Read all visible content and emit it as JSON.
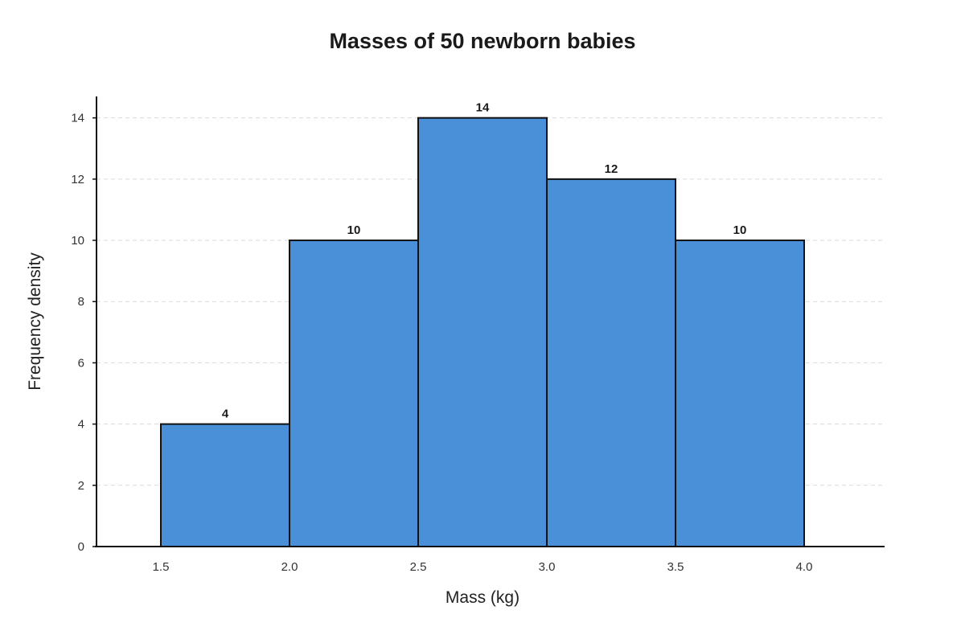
{
  "chart_data": {
    "type": "bar",
    "title": "Masses of 50 newborn babies",
    "xlabel": "Mass (kg)",
    "ylabel": "Frequency density",
    "bins": [
      {
        "start": 1.5,
        "end": 2.0,
        "value": 4
      },
      {
        "start": 2.0,
        "end": 2.5,
        "value": 10
      },
      {
        "start": 2.5,
        "end": 3.0,
        "value": 14
      },
      {
        "start": 3.0,
        "end": 3.5,
        "value": 12
      },
      {
        "start": 3.5,
        "end": 4.0,
        "value": 10
      }
    ],
    "data_labels": [
      "4",
      "10",
      "14",
      "12",
      "10"
    ],
    "xlim": [
      1.25,
      4.3125
    ],
    "ylim": [
      0,
      14.7
    ],
    "x_ticks": [
      1.5,
      2.0,
      2.5,
      3.0,
      3.5,
      4.0
    ],
    "x_tick_labels": [
      "1.5",
      "2.0",
      "2.5",
      "3.0",
      "3.5",
      "4.0"
    ],
    "y_ticks": [
      0,
      2,
      4,
      6,
      8,
      10,
      12,
      14
    ],
    "y_tick_labels": [
      "0",
      "2",
      "4",
      "6",
      "8",
      "10",
      "12",
      "14"
    ],
    "grid": true,
    "grid_axis": "y",
    "legend": "none",
    "colors": {
      "bar_fill": "#4a90d9",
      "bar_edge": "#111111",
      "grid": "#d9d9d9",
      "axis": "#111111"
    }
  }
}
